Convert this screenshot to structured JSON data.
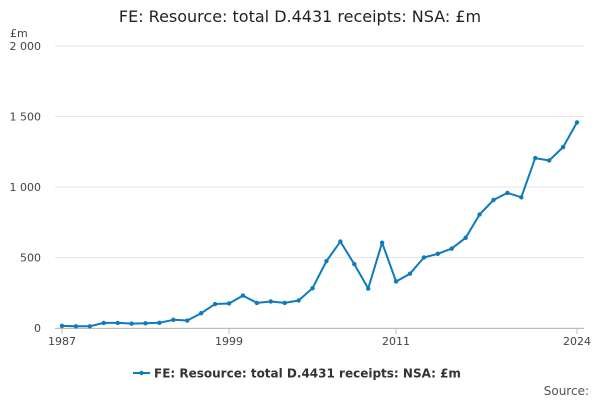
{
  "chart_data": {
    "type": "line",
    "title": "FE: Resource: total D.4431 receipts: NSA: £m",
    "y_unit": "£m",
    "xlim": [
      1987,
      2024
    ],
    "ylim": [
      0,
      2000
    ],
    "x_ticks": [
      "1987",
      "1999",
      "2011",
      "2024"
    ],
    "y_ticks": [
      "0",
      "500",
      "1 000",
      "1 500",
      "2 000"
    ],
    "grid": true,
    "legend_position": "bottom",
    "series": [
      {
        "name": "FE: Resource: total D.4431 receipts: NSA: £m",
        "color": "#0f7bba",
        "x": [
          1987,
          1988,
          1989,
          1990,
          1991,
          1992,
          1993,
          1994,
          1995,
          1996,
          1997,
          1998,
          1999,
          2000,
          2001,
          2002,
          2003,
          2004,
          2005,
          2006,
          2007,
          2008,
          2009,
          2010,
          2011,
          2012,
          2013,
          2014,
          2015,
          2016,
          2017,
          2018,
          2019,
          2020,
          2021,
          2022,
          2023,
          2024
        ],
        "values": [
          15,
          12,
          12,
          36,
          36,
          31,
          33,
          37,
          58,
          53,
          105,
          170,
          174,
          230,
          178,
          188,
          178,
          195,
          282,
          475,
          613,
          453,
          280,
          605,
          330,
          385,
          500,
          526,
          563,
          640,
          805,
          908,
          958,
          927,
          1205,
          1188,
          1283,
          1458
        ]
      }
    ]
  },
  "source_label": "Source:"
}
